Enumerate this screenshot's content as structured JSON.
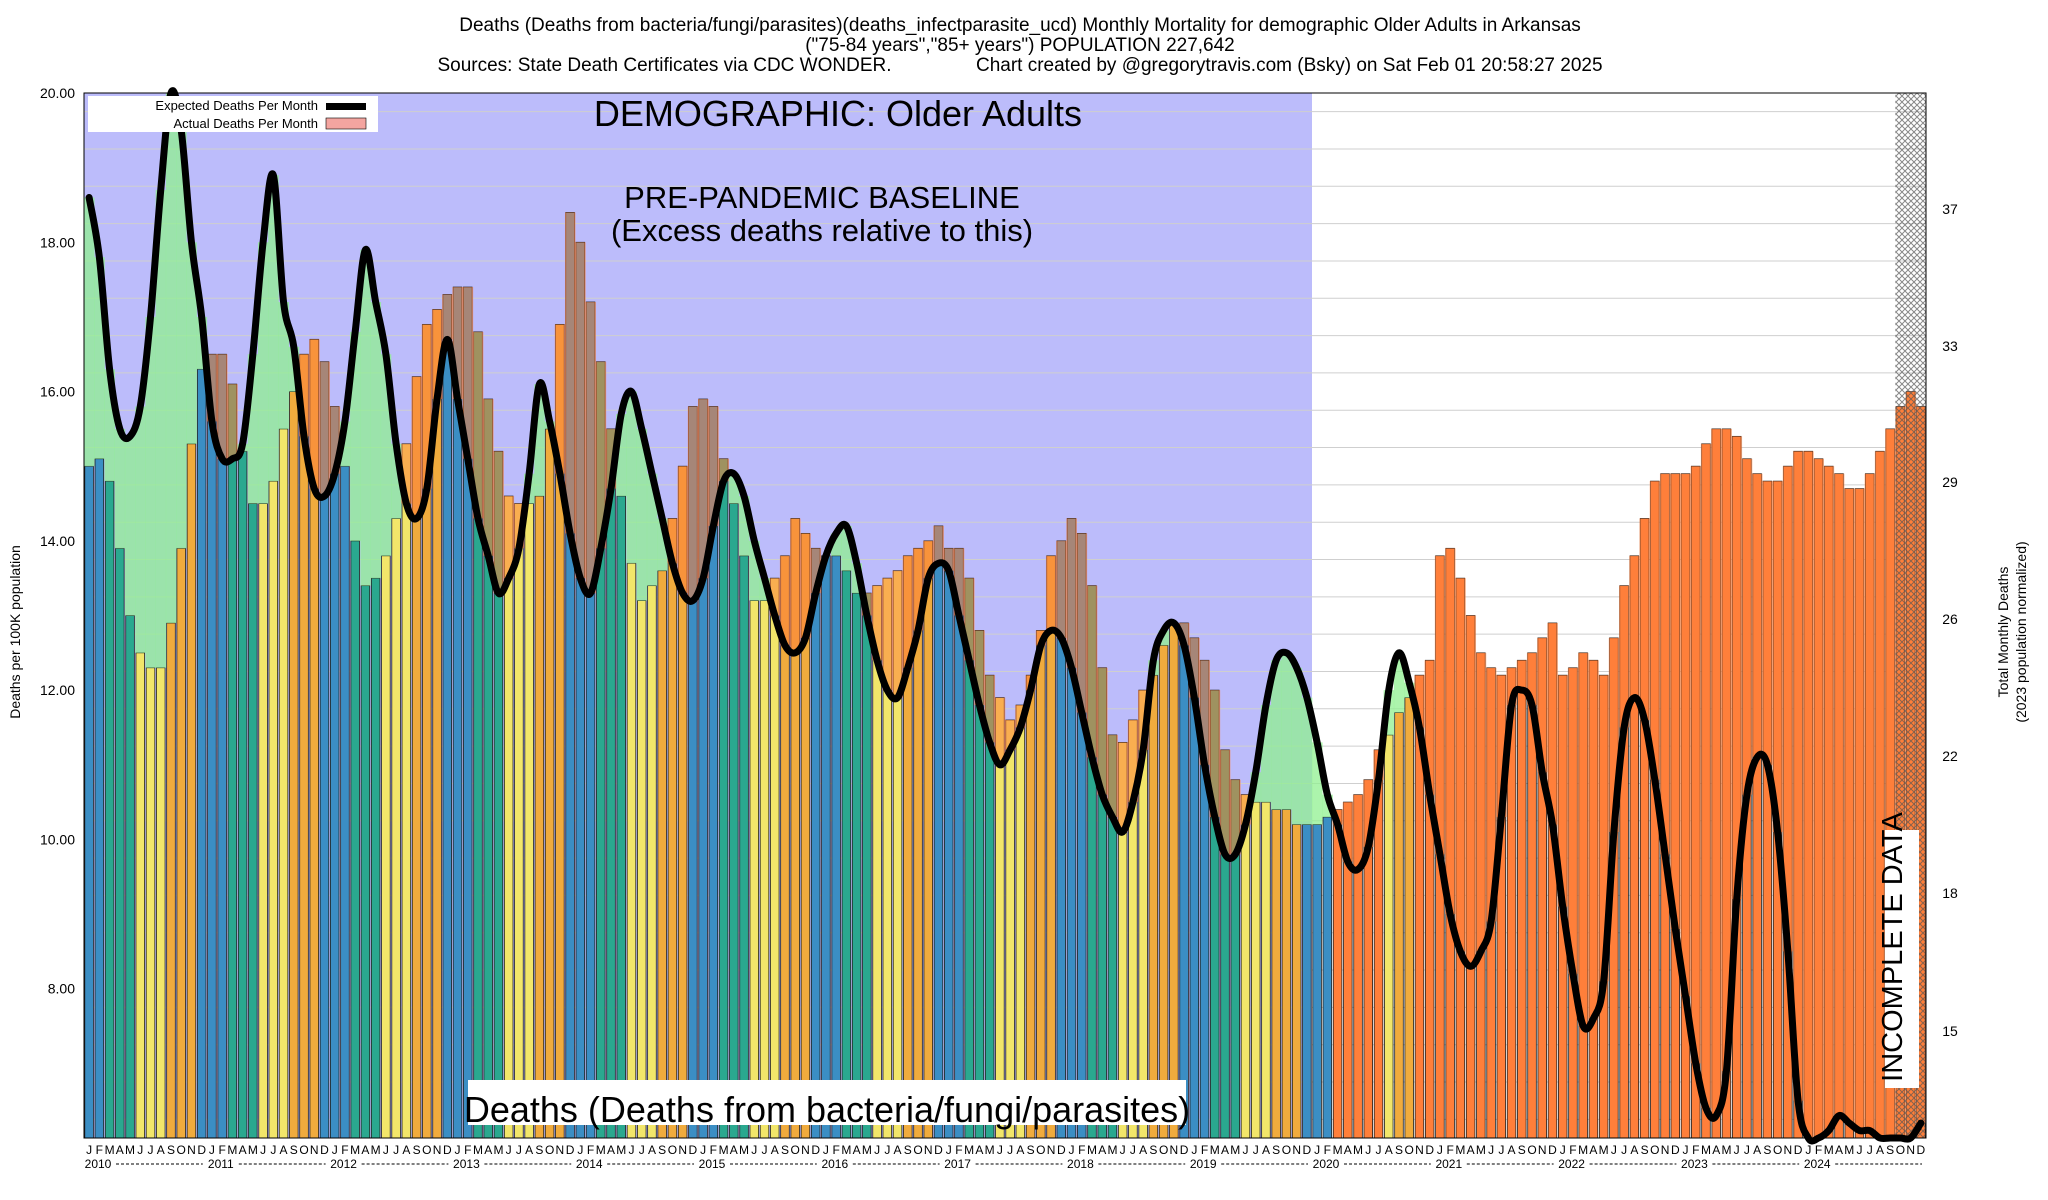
{
  "header": {
    "title_line1": "Deaths (Deaths from bacteria/fungi/parasites)(deaths_infectparasite_ucd) Monthly Mortality for demographic Older Adults in Arkansas",
    "title_line2": "(\"75-84 years\",\"85+ years\") POPULATION 227,642",
    "title_line3": "Sources: State Death Certificates via CDC WONDER.                Chart created by @gregorytravis.com (Bsky) on Sat Feb 01 20:58:27 2025"
  },
  "annotations": {
    "demographic": "DEMOGRAPHIC: Older Adults",
    "baseline_line1": "PRE-PANDEMIC BASELINE",
    "baseline_line2": "(Excess deaths relative to this)",
    "incomplete": "INCOMPLETE DATA",
    "bottom_label": "Deaths (Deaths from bacteria/fungi/parasites)"
  },
  "legend": {
    "expected": "Expected Deaths Per Month",
    "actual": "Actual Deaths Per Month"
  },
  "chart_data": {
    "type": "bar",
    "title": "Deaths (Deaths from bacteria/fungi/parasites)(deaths_infectparasite_ucd) Monthly Mortality for demographic Older Adults in Arkansas",
    "ylabel": "Deaths per 100K population",
    "y2label": [
      "Total Monthly Deaths",
      "(2023 population normalized)"
    ],
    "ylim": [
      6,
      20
    ],
    "y_ticks": [
      "8.00",
      "10.00",
      "12.00",
      "14.00",
      "16.00",
      "18.00",
      "20.00"
    ],
    "y2_ticks": [
      "15",
      "18",
      "22",
      "26",
      "29",
      "33",
      "37"
    ],
    "month_letters": [
      "J",
      "F",
      "M",
      "A",
      "M",
      "J",
      "J",
      "A",
      "S",
      "O",
      "N",
      "D"
    ],
    "years": [
      "2010",
      "2011",
      "2012",
      "2013",
      "2014",
      "2015",
      "2016",
      "2017",
      "2018",
      "2019",
      "2020",
      "2021",
      "2022",
      "2023",
      "2024"
    ],
    "series": [
      {
        "name": "Actual Deaths Per Month",
        "values": [
          15.0,
          15.1,
          14.8,
          13.9,
          13.0,
          12.5,
          12.3,
          12.3,
          12.9,
          13.9,
          15.3,
          16.3,
          16.5,
          16.5,
          16.1,
          15.2,
          14.5,
          14.5,
          14.8,
          15.5,
          16.0,
          16.5,
          16.7,
          16.4,
          15.8,
          15.0,
          14.0,
          13.4,
          13.5,
          13.8,
          14.3,
          15.3,
          16.2,
          16.9,
          17.1,
          17.3,
          17.4,
          17.4,
          16.8,
          15.9,
          15.2,
          14.6,
          14.5,
          14.5,
          14.6,
          15.5,
          16.9,
          18.4,
          18.0,
          17.2,
          16.4,
          15.5,
          14.6,
          13.7,
          13.2,
          13.4,
          13.6,
          14.3,
          15.0,
          15.8,
          15.9,
          15.8,
          15.1,
          14.5,
          13.8,
          13.2,
          13.2,
          13.5,
          13.8,
          14.3,
          14.1,
          13.9,
          13.8,
          13.8,
          13.6,
          13.3,
          13.3,
          13.4,
          13.5,
          13.6,
          13.8,
          13.9,
          14.0,
          14.2,
          13.9,
          13.9,
          13.5,
          12.8,
          12.2,
          11.9,
          11.6,
          11.8,
          12.2,
          12.8,
          13.8,
          14.0,
          14.3,
          14.1,
          13.4,
          12.3,
          11.4,
          11.3,
          11.6,
          12.0,
          12.2,
          12.6,
          12.9,
          12.9,
          12.7,
          12.4,
          12.0,
          11.2,
          10.8,
          10.6,
          10.5,
          10.5,
          10.4,
          10.4,
          10.2,
          10.2,
          10.2,
          10.3,
          10.4,
          10.5,
          10.6,
          10.8,
          11.2,
          11.4,
          11.7,
          11.9,
          12.2,
          12.4,
          13.8,
          13.9,
          13.5,
          13.0,
          12.5,
          12.3,
          12.2,
          12.3,
          12.4,
          12.5,
          12.7,
          12.9,
          12.2,
          12.3,
          12.5,
          12.4,
          12.2,
          12.7,
          13.4,
          13.8,
          14.3,
          14.8,
          14.9,
          14.9,
          14.9,
          15.0,
          15.3,
          15.5,
          15.5,
          15.4,
          15.1,
          14.9,
          14.8,
          14.8,
          15.0,
          15.2,
          15.2,
          15.1,
          15.0,
          14.9,
          14.7,
          14.7,
          14.9,
          15.2,
          15.5,
          15.8,
          16.0,
          15.8
        ]
      },
      {
        "name": "Expected Deaths Per Month",
        "values": [
          18.6,
          17.8,
          16.3,
          15.5,
          15.4,
          15.8,
          17.0,
          18.7,
          20.0,
          19.5,
          18.0,
          17.0,
          15.6,
          15.1,
          15.1,
          15.3,
          16.5,
          18.0,
          18.9,
          17.2,
          16.6,
          15.4,
          14.7,
          14.6,
          14.9,
          15.6,
          16.8,
          17.9,
          17.2,
          16.5,
          15.3,
          14.5,
          14.3,
          14.7,
          15.9,
          16.7,
          15.9,
          15.1,
          14.3,
          13.8,
          13.3,
          13.5,
          13.9,
          14.9,
          16.1,
          15.6,
          14.9,
          14.1,
          13.5,
          13.3,
          13.9,
          14.7,
          15.7,
          16.0,
          15.5,
          14.9,
          14.3,
          13.7,
          13.3,
          13.2,
          13.5,
          14.2,
          14.8,
          14.9,
          14.6,
          14.0,
          13.5,
          13.0,
          12.6,
          12.5,
          12.7,
          13.3,
          13.8,
          14.1,
          14.2,
          13.7,
          13.0,
          12.4,
          12.0,
          11.9,
          12.3,
          12.8,
          13.5,
          13.7,
          13.6,
          13.0,
          12.4,
          11.8,
          11.3,
          11.0,
          11.2,
          11.5,
          12.0,
          12.6,
          12.8,
          12.7,
          12.3,
          11.7,
          11.1,
          10.6,
          10.3,
          10.1,
          10.5,
          11.2,
          12.4,
          12.8,
          12.9,
          12.6,
          11.9,
          11.0,
          10.3,
          9.8,
          9.8,
          10.2,
          10.9,
          11.8,
          12.4,
          12.5,
          12.3,
          11.9,
          11.3,
          10.6,
          10.2,
          9.7,
          9.6,
          9.9,
          10.8,
          12.0,
          12.5,
          12.1,
          11.5,
          10.6,
          9.8,
          9.0,
          8.5,
          8.3,
          8.5,
          8.9,
          10.3,
          11.8,
          12.0,
          11.8,
          10.9,
          10.2,
          9.1,
          8.2,
          7.5,
          7.6,
          8.1,
          10.1,
          11.5,
          11.9,
          11.6,
          10.8,
          9.8,
          8.8,
          7.9,
          7.0,
          6.4,
          6.3,
          6.9,
          9.2,
          10.6,
          11.1,
          11.0,
          10.1,
          8.5,
          6.5,
          6.0,
          6.0,
          6.1,
          6.3,
          6.2,
          6.1,
          6.1,
          6.0,
          6.0,
          6.0,
          6.0,
          6.2
        ]
      }
    ],
    "incomplete_months": 3,
    "legend_position": "top-left",
    "grid": true,
    "colors": {
      "bar_winter": "#3b8ec4",
      "bar_spring": "#2aa88f",
      "bar_summer": "#f2e66a",
      "bar_fall": "#f0ab3d",
      "excess": "#ff7f3a",
      "deficit": "#90f090",
      "baseline_band": "#bcbcfb",
      "expected_line": "#000000",
      "actual_legend": "#f4a5a0"
    }
  }
}
